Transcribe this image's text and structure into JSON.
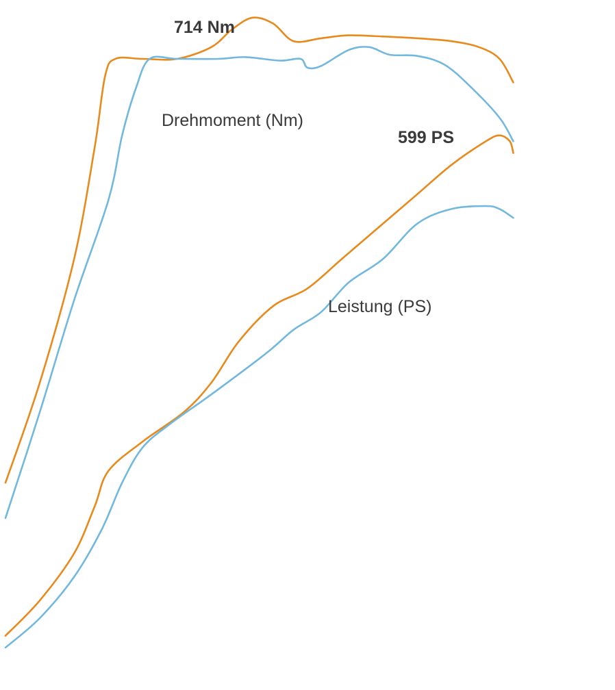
{
  "chart_data": {
    "type": "line",
    "colors": {
      "orange": "#e8891c",
      "blue": "#72b8de"
    },
    "series": [
      {
        "name": "Drehmoment (Nm)",
        "variant": "orange",
        "points": [
          [
            0.0,
            0.28
          ],
          [
            0.05,
            0.45
          ],
          [
            0.1,
            0.66
          ],
          [
            0.13,
            0.85
          ],
          [
            0.145,
            0.97
          ],
          [
            0.16,
            1.0
          ],
          [
            0.2,
            1.0
          ],
          [
            0.25,
            1.0
          ],
          [
            0.3,
            1.02
          ],
          [
            0.33,
            1.05
          ],
          [
            0.36,
            1.07
          ],
          [
            0.39,
            1.06
          ],
          [
            0.42,
            1.03
          ],
          [
            0.46,
            1.035
          ],
          [
            0.5,
            1.04
          ],
          [
            0.55,
            1.038
          ],
          [
            0.6,
            1.035
          ],
          [
            0.65,
            1.03
          ],
          [
            0.69,
            1.02
          ],
          [
            0.72,
            1.0
          ],
          [
            0.74,
            0.96
          ]
        ]
      },
      {
        "name": "Drehmoment (Nm)",
        "variant": "blue",
        "points": [
          [
            0.0,
            0.22
          ],
          [
            0.05,
            0.4
          ],
          [
            0.1,
            0.59
          ],
          [
            0.15,
            0.76
          ],
          [
            0.17,
            0.87
          ],
          [
            0.19,
            0.95
          ],
          [
            0.21,
            1.0
          ],
          [
            0.25,
            1.0
          ],
          [
            0.31,
            1.0
          ],
          [
            0.35,
            1.003
          ],
          [
            0.4,
            0.997
          ],
          [
            0.43,
            1.0
          ],
          [
            0.44,
            0.985
          ],
          [
            0.46,
            0.988
          ],
          [
            0.5,
            1.015
          ],
          [
            0.53,
            1.02
          ],
          [
            0.56,
            1.007
          ],
          [
            0.6,
            1.005
          ],
          [
            0.64,
            0.99
          ],
          [
            0.68,
            0.95
          ],
          [
            0.72,
            0.9
          ],
          [
            0.74,
            0.86
          ]
        ]
      },
      {
        "name": "Leistung (PS)",
        "variant": "orange",
        "points": [
          [
            0.0,
            0.02
          ],
          [
            0.05,
            0.08
          ],
          [
            0.1,
            0.16
          ],
          [
            0.13,
            0.24
          ],
          [
            0.15,
            0.3
          ],
          [
            0.2,
            0.35
          ],
          [
            0.26,
            0.4
          ],
          [
            0.3,
            0.45
          ],
          [
            0.34,
            0.52
          ],
          [
            0.39,
            0.58
          ],
          [
            0.44,
            0.61
          ],
          [
            0.49,
            0.66
          ],
          [
            0.54,
            0.71
          ],
          [
            0.6,
            0.77
          ],
          [
            0.65,
            0.82
          ],
          [
            0.7,
            0.86
          ],
          [
            0.72,
            0.87
          ],
          [
            0.735,
            0.86
          ],
          [
            0.74,
            0.84
          ]
        ]
      },
      {
        "name": "Leistung (PS)",
        "variant": "blue",
        "points": [
          [
            0.0,
            0.0
          ],
          [
            0.05,
            0.05
          ],
          [
            0.1,
            0.12
          ],
          [
            0.14,
            0.2
          ],
          [
            0.17,
            0.28
          ],
          [
            0.2,
            0.34
          ],
          [
            0.24,
            0.38
          ],
          [
            0.3,
            0.43
          ],
          [
            0.38,
            0.5
          ],
          [
            0.42,
            0.54
          ],
          [
            0.46,
            0.57
          ],
          [
            0.5,
            0.62
          ],
          [
            0.55,
            0.66
          ],
          [
            0.6,
            0.72
          ],
          [
            0.65,
            0.745
          ],
          [
            0.7,
            0.75
          ],
          [
            0.72,
            0.745
          ],
          [
            0.74,
            0.73
          ]
        ]
      }
    ],
    "annotations": {
      "torque_peak": "714 Nm",
      "power_peak": "599 PS",
      "torque_label": "Drehmoment (Nm)",
      "power_label": "Leistung (PS)"
    },
    "xlim": [
      0,
      1
    ],
    "ylim": [
      0,
      1.1
    ],
    "grid": false,
    "axes": false
  }
}
